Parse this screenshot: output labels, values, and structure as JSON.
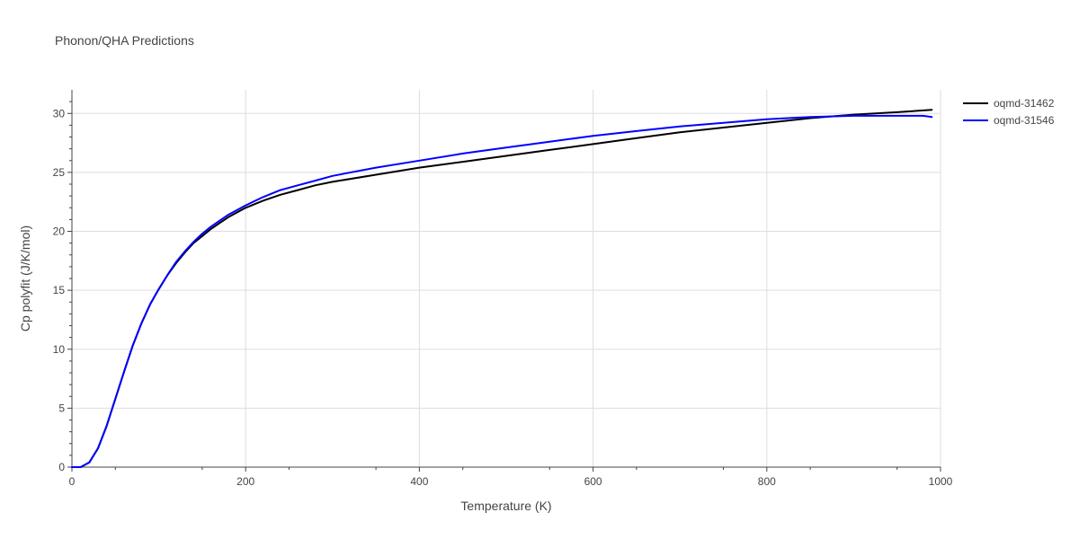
{
  "chart_data": {
    "type": "line",
    "title": "Phonon/QHA Predictions",
    "xlabel": "Temperature (K)",
    "ylabel": "Cp polyfit (J/K/mol)",
    "xlim": [
      0,
      1000
    ],
    "ylim": [
      0,
      32
    ],
    "xticks": [
      0,
      200,
      400,
      600,
      800,
      1000
    ],
    "yticks": [
      0,
      5,
      10,
      15,
      20,
      25,
      30
    ],
    "grid": true,
    "legend_position": "top-right",
    "series": [
      {
        "name": "oqmd-31462",
        "color": "#000000",
        "x": [
          0,
          10,
          20,
          30,
          40,
          50,
          60,
          70,
          80,
          90,
          100,
          110,
          120,
          130,
          140,
          150,
          160,
          170,
          180,
          190,
          200,
          220,
          240,
          260,
          280,
          300,
          350,
          400,
          450,
          500,
          550,
          600,
          650,
          700,
          750,
          800,
          850,
          900,
          950,
          990
        ],
        "y": [
          0,
          0,
          0.4,
          1.6,
          3.5,
          5.8,
          8.1,
          10.3,
          12.2,
          13.8,
          15.1,
          16.3,
          17.3,
          18.2,
          19.0,
          19.6,
          20.2,
          20.7,
          21.2,
          21.6,
          22.0,
          22.6,
          23.1,
          23.5,
          23.9,
          24.2,
          24.8,
          25.4,
          25.9,
          26.4,
          26.9,
          27.4,
          27.9,
          28.4,
          28.8,
          29.2,
          29.6,
          29.9,
          30.1,
          30.3
        ]
      },
      {
        "name": "oqmd-31546",
        "color": "#0000ff",
        "x": [
          0,
          10,
          20,
          30,
          40,
          50,
          60,
          70,
          80,
          90,
          100,
          110,
          120,
          130,
          140,
          150,
          160,
          170,
          180,
          190,
          200,
          220,
          240,
          260,
          280,
          300,
          350,
          400,
          450,
          500,
          550,
          600,
          650,
          700,
          750,
          800,
          850,
          900,
          950,
          980,
          990
        ],
        "y": [
          0,
          0,
          0.4,
          1.6,
          3.5,
          5.8,
          8.1,
          10.3,
          12.2,
          13.8,
          15.1,
          16.3,
          17.4,
          18.3,
          19.1,
          19.8,
          20.4,
          20.9,
          21.4,
          21.8,
          22.2,
          22.9,
          23.5,
          23.9,
          24.3,
          24.7,
          25.4,
          26.0,
          26.6,
          27.1,
          27.6,
          28.1,
          28.5,
          28.9,
          29.2,
          29.5,
          29.7,
          29.8,
          29.8,
          29.8,
          29.7
        ]
      }
    ]
  }
}
